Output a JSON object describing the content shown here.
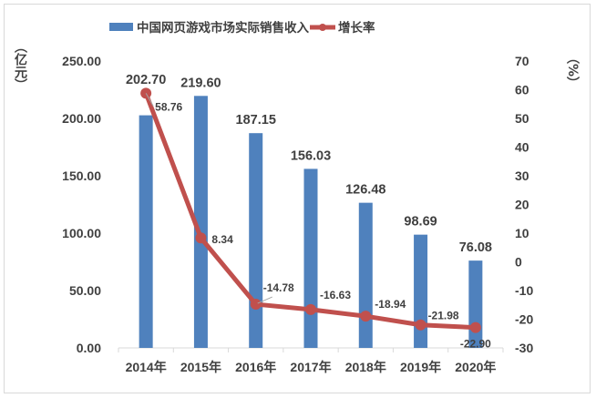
{
  "chart_data": {
    "type": "bar+line",
    "categories": [
      "2014年",
      "2015年",
      "2016年",
      "2017年",
      "2018年",
      "2019年",
      "2020年"
    ],
    "series": [
      {
        "name": "中国网页游戏市场实际销售收入",
        "type": "bar",
        "axis": "left",
        "color": "#4f81bd",
        "values": [
          202.7,
          219.6,
          187.15,
          156.03,
          126.48,
          98.69,
          76.08
        ],
        "labels": [
          "202.70",
          "219.60",
          "187.15",
          "156.03",
          "126.48",
          "98.69",
          "76.08"
        ]
      },
      {
        "name": "增长率",
        "type": "line",
        "axis": "right",
        "color": "#c0504d",
        "values": [
          58.76,
          8.34,
          -14.78,
          -16.63,
          -18.94,
          -21.98,
          -22.9
        ],
        "labels": [
          "58.76",
          "8.34",
          "-14.78",
          "-16.63",
          "-18.94",
          "-21.98",
          "-22.90"
        ]
      }
    ],
    "y_left": {
      "label": "（亿元）",
      "range": [
        0,
        250
      ],
      "ticks": [
        "0.00",
        "50.00",
        "100.00",
        "150.00",
        "200.00",
        "250.00"
      ]
    },
    "y_right": {
      "label": "（%）",
      "range": [
        -30,
        70
      ],
      "ticks": [
        "-30",
        "-20",
        "-10",
        "0",
        "10",
        "20",
        "30",
        "40",
        "50",
        "60",
        "70"
      ]
    },
    "grid": false,
    "legend": "top"
  }
}
